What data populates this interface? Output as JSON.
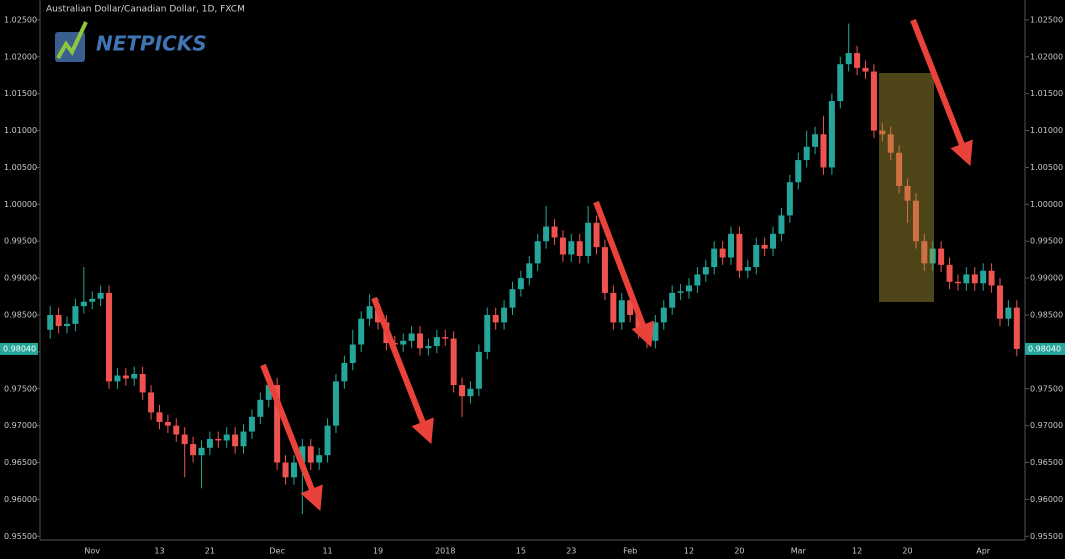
{
  "chart_data": {
    "type": "candlestick",
    "title": "Australian Dollar/Canadian Dollar, 1D, FXCM",
    "watermark": "NETPICKS",
    "up_color": "#26a69a",
    "down_color": "#ef5350",
    "categories": [
      null,
      null,
      null,
      null,
      null,
      "Nov",
      null,
      null,
      null,
      null,
      null,
      null,
      null,
      "13",
      null,
      null,
      null,
      null,
      null,
      "21",
      null,
      null,
      null,
      null,
      null,
      null,
      null,
      "Dec",
      null,
      null,
      null,
      null,
      null,
      "11",
      null,
      null,
      null,
      null,
      null,
      "19",
      null,
      null,
      null,
      null,
      null,
      null,
      null,
      "2018",
      null,
      null,
      null,
      null,
      null,
      null,
      null,
      null,
      "15",
      null,
      null,
      null,
      null,
      null,
      "23",
      null,
      null,
      null,
      null,
      null,
      null,
      "Feb",
      null,
      null,
      null,
      null,
      null,
      null,
      "12",
      null,
      null,
      null,
      null,
      null,
      "20",
      null,
      null,
      null,
      null,
      null,
      null,
      "Mar",
      null,
      null,
      null,
      null,
      null,
      null,
      "12",
      null,
      null,
      null,
      null,
      null,
      "20",
      null,
      null,
      null,
      null,
      null,
      null,
      null,
      null,
      "Apr",
      null,
      null,
      null,
      null
    ],
    "open": [
      0.983,
      0.985,
      0.9835,
      0.9838,
      0.9862,
      0.9868,
      0.9872,
      0.988,
      0.976,
      0.9768,
      0.9764,
      0.977,
      0.9745,
      0.9718,
      0.9705,
      0.97,
      0.9688,
      0.9675,
      0.966,
      0.967,
      0.9682,
      0.968,
      0.9688,
      0.9672,
      0.9692,
      0.9712,
      0.9735,
      0.9755,
      0.965,
      0.963,
      0.965,
      0.9672,
      0.965,
      0.966,
      0.97,
      0.976,
      0.9785,
      0.981,
      0.9845,
      0.9862,
      0.984,
      0.9812,
      0.981,
      0.9815,
      0.9825,
      0.9805,
      0.9808,
      0.982,
      0.9818,
      0.9755,
      0.974,
      0.975,
      0.98,
      0.985,
      0.984,
      0.986,
      0.9885,
      0.99,
      0.992,
      0.995,
      0.997,
      0.9955,
      0.9932,
      0.995,
      0.993,
      0.9975,
      0.9942,
      0.988,
      0.984,
      0.987,
      0.985,
      0.9828,
      0.9815,
      0.984,
      0.986,
      0.988,
      0.9882,
      0.989,
      0.9905,
      0.9915,
      0.994,
      0.9928,
      0.996,
      0.991,
      0.9915,
      0.9945,
      0.994,
      0.996,
      0.9985,
      1.003,
      1.006,
      1.0078,
      1.0095,
      1.005,
      1.014,
      1.019,
      1.0205,
      1.0185,
      1.018,
      1.01,
      1.0095,
      1.007,
      1.0025,
      1.0005,
      0.995,
      0.992,
      0.994,
      0.9918,
      0.9895,
      0.9893,
      0.9905,
      0.9893,
      0.991,
      0.989,
      0.9845,
      0.986
    ],
    "high": [
      0.9862,
      0.986,
      0.9848,
      0.9872,
      0.9915,
      0.9882,
      0.989,
      0.989,
      0.9778,
      0.9778,
      0.978,
      0.978,
      0.9755,
      0.9728,
      0.9715,
      0.971,
      0.9698,
      0.9685,
      0.968,
      0.9692,
      0.9692,
      0.9698,
      0.9698,
      0.9702,
      0.9722,
      0.9745,
      0.9765,
      0.9765,
      0.966,
      0.966,
      0.9682,
      0.9682,
      0.967,
      0.971,
      0.977,
      0.9795,
      0.983,
      0.9855,
      0.9878,
      0.9872,
      0.985,
      0.9822,
      0.9825,
      0.9835,
      0.9835,
      0.9818,
      0.983,
      0.983,
      0.9828,
      0.9765,
      0.976,
      0.981,
      0.986,
      0.986,
      0.987,
      0.9895,
      0.991,
      0.993,
      0.996,
      0.9998,
      0.998,
      0.9965,
      0.996,
      0.996,
      0.9998,
      0.9985,
      0.9952,
      0.989,
      0.988,
      0.988,
      0.986,
      0.9838,
      0.985,
      0.987,
      0.989,
      0.9892,
      0.99,
      0.9915,
      0.9925,
      0.995,
      0.995,
      0.997,
      0.997,
      0.9925,
      0.9955,
      0.9955,
      0.997,
      0.9995,
      1.004,
      1.007,
      1.01,
      1.0105,
      1.012,
      1.015,
      1.02,
      1.0245,
      1.0215,
      1.0195,
      1.019,
      1.011,
      1.0105,
      1.008,
      1.0035,
      1.0015,
      0.996,
      0.995,
      0.995,
      0.9928,
      0.9905,
      0.9915,
      0.9915,
      0.992,
      0.992,
      0.99,
      0.987,
      0.987
    ],
    "low": [
      0.9818,
      0.9825,
      0.9825,
      0.9828,
      0.9852,
      0.9858,
      0.9862,
      0.975,
      0.975,
      0.9754,
      0.9754,
      0.9735,
      0.9708,
      0.9695,
      0.969,
      0.9678,
      0.963,
      0.965,
      0.9615,
      0.966,
      0.967,
      0.967,
      0.9662,
      0.9662,
      0.9682,
      0.9702,
      0.9725,
      0.964,
      0.962,
      0.962,
      0.958,
      0.964,
      0.964,
      0.965,
      0.969,
      0.975,
      0.9775,
      0.98,
      0.9835,
      0.983,
      0.9802,
      0.98,
      0.98,
      0.9805,
      0.9795,
      0.9795,
      0.9798,
      0.9808,
      0.9745,
      0.9712,
      0.973,
      0.974,
      0.979,
      0.983,
      0.983,
      0.985,
      0.9875,
      0.989,
      0.991,
      0.994,
      0.9945,
      0.9922,
      0.9922,
      0.992,
      0.992,
      0.9932,
      0.987,
      0.983,
      0.983,
      0.984,
      0.9818,
      0.9805,
      0.9805,
      0.983,
      0.985,
      0.987,
      0.9872,
      0.988,
      0.9895,
      0.9905,
      0.9918,
      0.9918,
      0.99,
      0.99,
      0.9905,
      0.993,
      0.993,
      0.995,
      0.9975,
      1.002,
      1.005,
      1.0068,
      1.004,
      1.004,
      1.013,
      1.018,
      1.0175,
      1.017,
      1.009,
      1.0085,
      1.006,
      1.0015,
      0.9975,
      0.994,
      0.991,
      0.991,
      0.9908,
      0.9885,
      0.9883,
      0.9883,
      0.9883,
      0.9883,
      0.988,
      0.9835,
      0.9835,
      0.9794
    ],
    "close": [
      0.985,
      0.9835,
      0.9838,
      0.9862,
      0.9868,
      0.9872,
      0.988,
      0.976,
      0.9768,
      0.9764,
      0.977,
      0.9745,
      0.9718,
      0.9705,
      0.97,
      0.9688,
      0.9675,
      0.966,
      0.967,
      0.9682,
      0.968,
      0.9688,
      0.9672,
      0.9692,
      0.9712,
      0.9735,
      0.9755,
      0.965,
      0.963,
      0.965,
      0.9672,
      0.965,
      0.966,
      0.97,
      0.976,
      0.9785,
      0.981,
      0.9845,
      0.9862,
      0.984,
      0.9812,
      0.981,
      0.9815,
      0.9825,
      0.9805,
      0.9808,
      0.982,
      0.9818,
      0.9755,
      0.974,
      0.975,
      0.98,
      0.985,
      0.984,
      0.986,
      0.9885,
      0.99,
      0.992,
      0.995,
      0.997,
      0.9955,
      0.9932,
      0.995,
      0.993,
      0.9975,
      0.9942,
      0.988,
      0.984,
      0.987,
      0.985,
      0.9828,
      0.9815,
      0.984,
      0.986,
      0.988,
      0.9882,
      0.989,
      0.9905,
      0.9915,
      0.994,
      0.9928,
      0.996,
      0.991,
      0.9915,
      0.9945,
      0.994,
      0.996,
      0.9985,
      1.003,
      1.006,
      1.0078,
      1.0095,
      1.005,
      1.014,
      1.019,
      1.0205,
      1.0185,
      1.018,
      1.01,
      1.0095,
      1.007,
      1.0025,
      1.0005,
      0.995,
      0.992,
      0.994,
      0.9918,
      0.9895,
      0.9893,
      0.9905,
      0.9893,
      0.991,
      0.989,
      0.9845,
      0.986,
      0.9804
    ],
    "ylim": [
      0.9545,
      1.0277
    ],
    "yticks": [
      {
        "value": 0.955,
        "label": "0.95500"
      },
      {
        "value": 0.96,
        "label": "0.96000"
      },
      {
        "value": 0.965,
        "label": "0.96500"
      },
      {
        "value": 0.97,
        "label": "0.97000"
      },
      {
        "value": 0.975,
        "label": "0.97500"
      },
      {
        "value": 0.98,
        "label": "0.98000"
      },
      {
        "value": 0.985,
        "label": "0.98500"
      },
      {
        "value": 0.99,
        "label": "0.99000"
      },
      {
        "value": 0.995,
        "label": "0.99500"
      },
      {
        "value": 1.0,
        "label": "1.00000"
      },
      {
        "value": 1.005,
        "label": "1.00500"
      },
      {
        "value": 1.01,
        "label": "1.01000"
      },
      {
        "value": 1.015,
        "label": "1.01500"
      },
      {
        "value": 1.02,
        "label": "1.02000"
      },
      {
        "value": 1.025,
        "label": "1.02500"
      }
    ],
    "last_price": {
      "value": 0.9804,
      "label": "0.98040"
    }
  }
}
